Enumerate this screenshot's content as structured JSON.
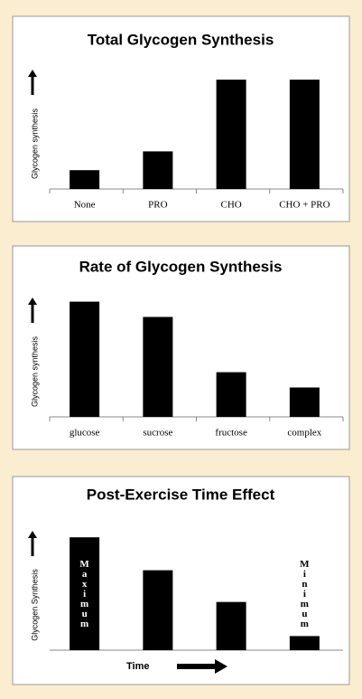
{
  "chart_data": [
    {
      "type": "bar",
      "title": "Total Glycogen Synthesis",
      "y_label": "Glycogen synthesis",
      "categories": [
        "None",
        "PRO",
        "CHO",
        "CHO + PRO"
      ],
      "values": [
        16,
        32,
        93,
        93
      ],
      "color": "#000000",
      "ylim": [
        0,
        100
      ]
    },
    {
      "type": "bar",
      "title": "Rate of Glycogen Synthesis",
      "y_label": "Glycogen synthesis",
      "categories": [
        "glucose",
        "sucrose",
        "fructose",
        "complex"
      ],
      "values": [
        98,
        85,
        38,
        25
      ],
      "color": "#000000",
      "ylim": [
        0,
        100
      ]
    },
    {
      "type": "bar",
      "title": "Post-Exercise Time Effect",
      "y_label": "Glycogen Synthesis",
      "x_label": "Time",
      "categories": [
        null,
        null,
        null,
        null
      ],
      "values": [
        96,
        68,
        41,
        12
      ],
      "color": "#000000",
      "ylim": [
        0,
        100
      ],
      "annotations": [
        "Maximum",
        "Minimum"
      ]
    }
  ]
}
